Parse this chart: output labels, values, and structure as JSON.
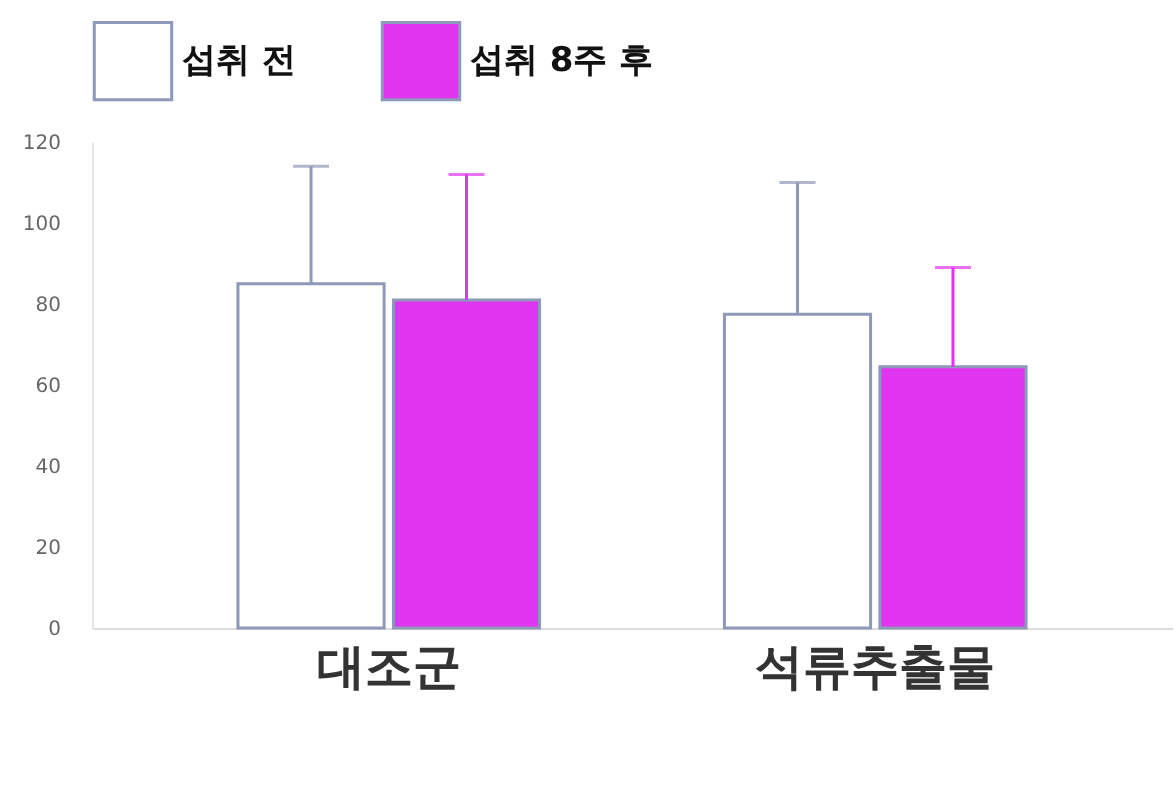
{
  "chart_data": {
    "type": "bar",
    "categories": [
      "대조군",
      "석류추출물"
    ],
    "series": [
      {
        "name": "섭취 전",
        "color": "#ffffff",
        "values": [
          85,
          77.5
        ],
        "errors": [
          [
            85,
            114
          ],
          [
            77.5,
            110
          ]
        ]
      },
      {
        "name": "섭취 8주 후",
        "color": "#e035f0",
        "values": [
          81,
          64.5
        ],
        "errors": [
          [
            81,
            112
          ],
          [
            64.5,
            89
          ]
        ]
      }
    ],
    "ylim": [
      0,
      120
    ],
    "yticks": [
      0,
      20,
      40,
      60,
      80,
      100,
      120
    ],
    "grid": false,
    "legend": "top"
  }
}
